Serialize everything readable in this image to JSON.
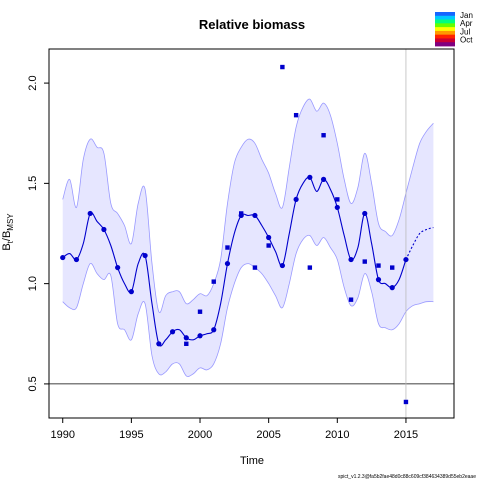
{
  "chart_data": {
    "type": "line",
    "title": "Relative biomass",
    "xlabel": "Time",
    "ylabel_main": "B",
    "ylabel_sub1": "t",
    "ylabel_mid": "/B",
    "ylabel_sub2": "MSY",
    "footnote": "spict_v1.2.3@fa5b2fae48d0c88c609cf384634389d55eb2eaae",
    "xlim": [
      1989,
      2018.5
    ],
    "ylim": [
      0.33,
      2.17
    ],
    "x_ticks": [
      1990,
      1995,
      2000,
      2005,
      2010,
      2015
    ],
    "y_ticks": [
      0.5,
      1.0,
      1.5,
      2.0
    ],
    "x_tick_labels": [
      "1990",
      "1995",
      "2000",
      "2005",
      "2010",
      "2015"
    ],
    "y_tick_labels": [
      "0.5",
      "1.0",
      "1.5",
      "2.0"
    ],
    "reference_line_y": 0.5,
    "vertical_line_x": 2015,
    "colors": {
      "estimate": "#0000cc",
      "ci_fill": "#e6e6ff",
      "ci_border": "#9999ff",
      "observations": "#0000cc",
      "vline": "#bbbbbb"
    },
    "legend": {
      "position": "top-right",
      "labels": [
        "Jan",
        "Apr",
        "Jul",
        "Oct"
      ],
      "gradient": [
        "#1565ff",
        "#00c8ff",
        "#00ff80",
        "#66ff00",
        "#ffff00",
        "#ff9900",
        "#ff2200",
        "#cc0033",
        "#800080"
      ]
    },
    "estimate_points": [
      {
        "x": 1990,
        "y": 1.13
      },
      {
        "x": 1991,
        "y": 1.12
      },
      {
        "x": 1992,
        "y": 1.35
      },
      {
        "x": 1993,
        "y": 1.27
      },
      {
        "x": 1994,
        "y": 1.08
      },
      {
        "x": 1995,
        "y": 0.96
      },
      {
        "x": 1996,
        "y": 1.14
      },
      {
        "x": 1997,
        "y": 0.7
      },
      {
        "x": 1998,
        "y": 0.76
      },
      {
        "x": 1999,
        "y": 0.73
      },
      {
        "x": 2000,
        "y": 0.74
      },
      {
        "x": 2001,
        "y": 0.77
      },
      {
        "x": 2002,
        "y": 1.1
      },
      {
        "x": 2003,
        "y": 1.34
      },
      {
        "x": 2004,
        "y": 1.34
      },
      {
        "x": 2005,
        "y": 1.23
      },
      {
        "x": 2006,
        "y": 1.09
      },
      {
        "x": 2007,
        "y": 1.42
      },
      {
        "x": 2008,
        "y": 1.53
      },
      {
        "x": 2009,
        "y": 1.52
      },
      {
        "x": 2010,
        "y": 1.38
      },
      {
        "x": 2011,
        "y": 1.12
      },
      {
        "x": 2012,
        "y": 1.35
      },
      {
        "x": 2013,
        "y": 1.02
      },
      {
        "x": 2014,
        "y": 0.98
      },
      {
        "x": 2015,
        "y": 1.12
      }
    ],
    "estimate_curve": [
      {
        "x": 1990,
        "y": 1.13
      },
      {
        "x": 1990.5,
        "y": 1.15
      },
      {
        "x": 1991,
        "y": 1.12
      },
      {
        "x": 1991.5,
        "y": 1.2
      },
      {
        "x": 1992,
        "y": 1.35
      },
      {
        "x": 1992.5,
        "y": 1.31
      },
      {
        "x": 1993,
        "y": 1.27
      },
      {
        "x": 1993.5,
        "y": 1.19
      },
      {
        "x": 1994,
        "y": 1.08
      },
      {
        "x": 1994.5,
        "y": 1.0
      },
      {
        "x": 1995,
        "y": 0.96
      },
      {
        "x": 1995.5,
        "y": 1.1
      },
      {
        "x": 1996,
        "y": 1.14
      },
      {
        "x": 1996.5,
        "y": 0.9
      },
      {
        "x": 1997,
        "y": 0.7
      },
      {
        "x": 1997.5,
        "y": 0.72
      },
      {
        "x": 1998,
        "y": 0.76
      },
      {
        "x": 1998.5,
        "y": 0.77
      },
      {
        "x": 1999,
        "y": 0.73
      },
      {
        "x": 1999.5,
        "y": 0.72
      },
      {
        "x": 2000,
        "y": 0.74
      },
      {
        "x": 2000.5,
        "y": 0.75
      },
      {
        "x": 2001,
        "y": 0.77
      },
      {
        "x": 2001.5,
        "y": 0.9
      },
      {
        "x": 2002,
        "y": 1.1
      },
      {
        "x": 2002.5,
        "y": 1.25
      },
      {
        "x": 2003,
        "y": 1.34
      },
      {
        "x": 2003.5,
        "y": 1.34
      },
      {
        "x": 2004,
        "y": 1.34
      },
      {
        "x": 2004.5,
        "y": 1.29
      },
      {
        "x": 2005,
        "y": 1.23
      },
      {
        "x": 2005.5,
        "y": 1.16
      },
      {
        "x": 2006,
        "y": 1.09
      },
      {
        "x": 2006.5,
        "y": 1.25
      },
      {
        "x": 2007,
        "y": 1.42
      },
      {
        "x": 2007.5,
        "y": 1.5
      },
      {
        "x": 2008,
        "y": 1.53
      },
      {
        "x": 2008.5,
        "y": 1.46
      },
      {
        "x": 2009,
        "y": 1.52
      },
      {
        "x": 2009.5,
        "y": 1.47
      },
      {
        "x": 2010,
        "y": 1.38
      },
      {
        "x": 2010.5,
        "y": 1.24
      },
      {
        "x": 2011,
        "y": 1.12
      },
      {
        "x": 2011.5,
        "y": 1.18
      },
      {
        "x": 2012,
        "y": 1.35
      },
      {
        "x": 2012.5,
        "y": 1.2
      },
      {
        "x": 2013,
        "y": 1.02
      },
      {
        "x": 2013.5,
        "y": 1.0
      },
      {
        "x": 2014,
        "y": 0.98
      },
      {
        "x": 2014.5,
        "y": 1.02
      },
      {
        "x": 2015,
        "y": 1.12
      }
    ],
    "forecast_curve": [
      {
        "x": 2015,
        "y": 1.12
      },
      {
        "x": 2015.5,
        "y": 1.19
      },
      {
        "x": 2016,
        "y": 1.25
      },
      {
        "x": 2016.5,
        "y": 1.27
      },
      {
        "x": 2017,
        "y": 1.28
      }
    ],
    "ci_band": [
      {
        "x": 1990,
        "lo": 0.91,
        "hi": 1.42
      },
      {
        "x": 1990.5,
        "lo": 0.88,
        "hi": 1.52
      },
      {
        "x": 1991,
        "lo": 0.88,
        "hi": 1.38
      },
      {
        "x": 1991.5,
        "lo": 1.0,
        "hi": 1.62
      },
      {
        "x": 1992,
        "lo": 1.1,
        "hi": 1.72
      },
      {
        "x": 1992.5,
        "lo": 1.05,
        "hi": 1.68
      },
      {
        "x": 1993,
        "lo": 1.02,
        "hi": 1.65
      },
      {
        "x": 1993.5,
        "lo": 1.04,
        "hi": 1.4
      },
      {
        "x": 1994,
        "lo": 0.8,
        "hi": 1.35
      },
      {
        "x": 1994.5,
        "lo": 0.77,
        "hi": 1.29
      },
      {
        "x": 1995,
        "lo": 0.72,
        "hi": 1.2
      },
      {
        "x": 1995.5,
        "lo": 0.85,
        "hi": 1.4
      },
      {
        "x": 1996,
        "lo": 0.9,
        "hi": 1.47
      },
      {
        "x": 1996.5,
        "lo": 0.64,
        "hi": 1.1
      },
      {
        "x": 1997,
        "lo": 0.55,
        "hi": 0.86
      },
      {
        "x": 1997.5,
        "lo": 0.56,
        "hi": 0.94
      },
      {
        "x": 1998,
        "lo": 0.6,
        "hi": 0.96
      },
      {
        "x": 1998.5,
        "lo": 0.6,
        "hi": 0.96
      },
      {
        "x": 1999,
        "lo": 0.54,
        "hi": 0.9
      },
      {
        "x": 1999.5,
        "lo": 0.55,
        "hi": 0.92
      },
      {
        "x": 2000,
        "lo": 0.58,
        "hi": 0.95
      },
      {
        "x": 2000.5,
        "lo": 0.57,
        "hi": 0.94
      },
      {
        "x": 2001,
        "lo": 0.6,
        "hi": 1.0
      },
      {
        "x": 2001.5,
        "lo": 0.7,
        "hi": 1.12
      },
      {
        "x": 2002,
        "lo": 0.88,
        "hi": 1.4
      },
      {
        "x": 2002.5,
        "lo": 1.0,
        "hi": 1.6
      },
      {
        "x": 2003,
        "lo": 1.08,
        "hi": 1.68
      },
      {
        "x": 2003.5,
        "lo": 1.1,
        "hi": 1.72
      },
      {
        "x": 2004,
        "lo": 1.08,
        "hi": 1.7
      },
      {
        "x": 2004.5,
        "lo": 1.05,
        "hi": 1.62
      },
      {
        "x": 2005,
        "lo": 1.0,
        "hi": 1.55
      },
      {
        "x": 2005.5,
        "lo": 0.94,
        "hi": 1.45
      },
      {
        "x": 2006,
        "lo": 0.88,
        "hi": 1.38
      },
      {
        "x": 2006.5,
        "lo": 1.0,
        "hi": 1.58
      },
      {
        "x": 2007,
        "lo": 1.15,
        "hi": 1.78
      },
      {
        "x": 2007.5,
        "lo": 1.22,
        "hi": 1.88
      },
      {
        "x": 2008,
        "lo": 1.24,
        "hi": 1.92
      },
      {
        "x": 2008.5,
        "lo": 1.19,
        "hi": 1.86
      },
      {
        "x": 2009,
        "lo": 1.23,
        "hi": 1.9
      },
      {
        "x": 2009.5,
        "lo": 1.18,
        "hi": 1.84
      },
      {
        "x": 2010,
        "lo": 1.12,
        "hi": 1.7
      },
      {
        "x": 2010.5,
        "lo": 0.98,
        "hi": 1.52
      },
      {
        "x": 2011,
        "lo": 0.89,
        "hi": 1.4
      },
      {
        "x": 2011.5,
        "lo": 0.93,
        "hi": 1.48
      },
      {
        "x": 2012,
        "lo": 1.05,
        "hi": 1.65
      },
      {
        "x": 2012.5,
        "lo": 0.96,
        "hi": 1.5
      },
      {
        "x": 2013,
        "lo": 0.8,
        "hi": 1.3
      },
      {
        "x": 2013.5,
        "lo": 0.78,
        "hi": 1.26
      },
      {
        "x": 2014,
        "lo": 0.77,
        "hi": 1.24
      },
      {
        "x": 2014.5,
        "lo": 0.8,
        "hi": 1.32
      },
      {
        "x": 2015,
        "lo": 0.86,
        "hi": 1.45
      },
      {
        "x": 2015.5,
        "lo": 0.89,
        "hi": 1.58
      },
      {
        "x": 2016,
        "lo": 0.9,
        "hi": 1.7
      },
      {
        "x": 2016.5,
        "lo": 0.91,
        "hi": 1.76
      },
      {
        "x": 2017,
        "lo": 0.91,
        "hi": 1.8
      }
    ],
    "observations": [
      {
        "x": 1999,
        "y": 0.7
      },
      {
        "x": 2000,
        "y": 0.86
      },
      {
        "x": 2001,
        "y": 1.01
      },
      {
        "x": 2002,
        "y": 1.18
      },
      {
        "x": 2003,
        "y": 1.35
      },
      {
        "x": 2004,
        "y": 1.08
      },
      {
        "x": 2005,
        "y": 1.19
      },
      {
        "x": 2006,
        "y": 2.08
      },
      {
        "x": 2007,
        "y": 1.84
      },
      {
        "x": 2008,
        "y": 1.08
      },
      {
        "x": 2009,
        "y": 1.74
      },
      {
        "x": 2010,
        "y": 1.42
      },
      {
        "x": 2011,
        "y": 0.92
      },
      {
        "x": 2012,
        "y": 1.11
      },
      {
        "x": 2013,
        "y": 1.09
      },
      {
        "x": 2014,
        "y": 1.08
      },
      {
        "x": 2015,
        "y": 0.41
      }
    ]
  }
}
